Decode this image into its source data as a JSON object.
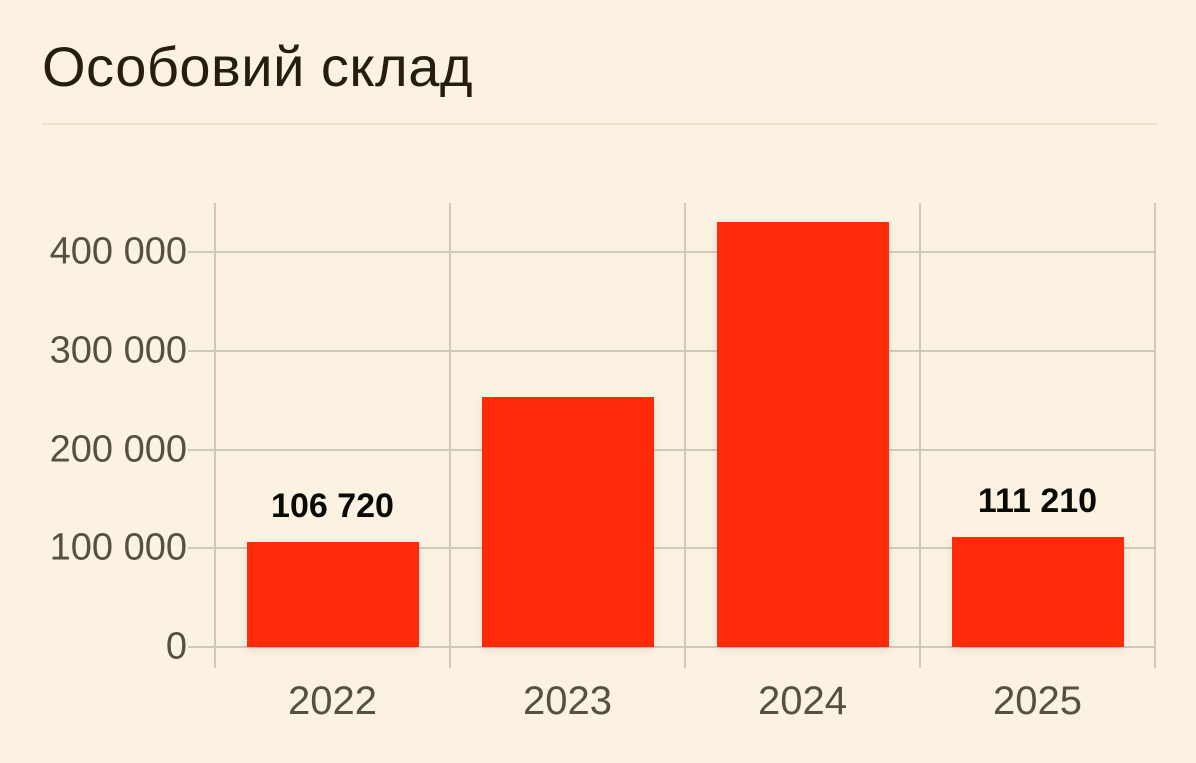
{
  "page": {
    "background": "#FBF2E2"
  },
  "header": {
    "title": "Особовий склад"
  },
  "chart_data": {
    "type": "bar",
    "title": "Особовий склад",
    "categories": [
      "2022",
      "2023",
      "2024",
      "2025"
    ],
    "values": [
      106720,
      253000,
      431000,
      111210
    ],
    "bar_labels": [
      "106 720",
      "",
      "",
      "111 210"
    ],
    "xlabel": "",
    "ylabel": "",
    "ylim": [
      0,
      450000
    ],
    "yticks": [
      0,
      100000,
      200000,
      300000,
      400000
    ],
    "ytick_labels": [
      "0",
      "100 000",
      "200 000",
      "300 000",
      "400 000"
    ],
    "grid": true,
    "legend": "none",
    "colors": {
      "bar": "#FF2A0A",
      "grid": "#CFC9BC",
      "axis_text": "#55503F",
      "bar_label_text": "#0A0A05",
      "title_text": "#251E0E",
      "divider": "#E9E1CE"
    }
  }
}
